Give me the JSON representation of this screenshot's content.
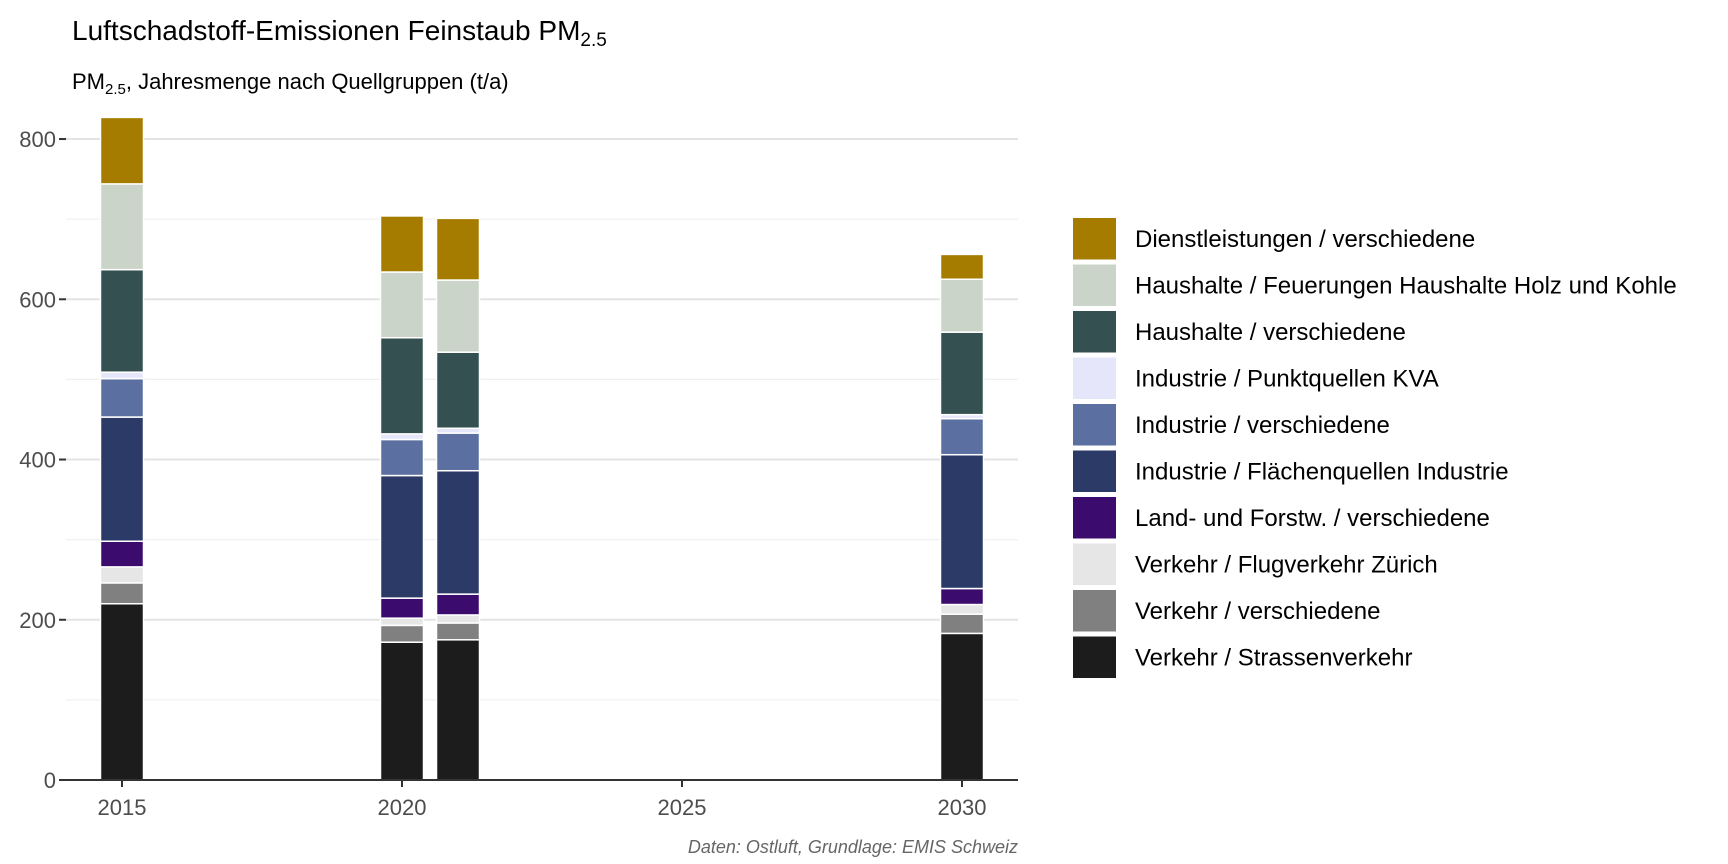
{
  "chart_data": {
    "type": "bar",
    "stacked": true,
    "title": "Luftschadstoff-Emissionen Feinstaub PM",
    "title_sub": "2.5",
    "subtitle_prefix": "PM",
    "subtitle_sub": "2.5",
    "subtitle_suffix": ", Jahresmenge nach Quellgruppen (t/a)",
    "caption": "Daten: Ostluft, Grundlage: EMIS Schweiz",
    "xlim": [
      2014,
      2031
    ],
    "ylim": [
      0,
      830
    ],
    "x_ticks": [
      2015,
      2020,
      2025,
      2030
    ],
    "y_ticks": [
      0,
      200,
      400,
      600,
      800
    ],
    "legend_position": "right",
    "grid": true,
    "x": [
      2015,
      2020,
      2021,
      2030
    ],
    "series": [
      {
        "name": "Verkehr / Strassenverkehr",
        "color": "#1c1c1c",
        "values": [
          220,
          172,
          175,
          183
        ]
      },
      {
        "name": "Verkehr / verschiedene",
        "color": "#808080",
        "values": [
          26,
          21,
          21,
          24
        ]
      },
      {
        "name": "Verkehr / Flugverkehr Zürich",
        "color": "#e6e6e6",
        "values": [
          20,
          9,
          10,
          12
        ]
      },
      {
        "name": "Land- und Forstw. / verschiedene",
        "color": "#3b0c6e",
        "values": [
          32,
          25,
          26,
          20
        ]
      },
      {
        "name": "Industrie / Flächenquellen Industrie",
        "color": "#2b3a66",
        "values": [
          155,
          153,
          154,
          167
        ]
      },
      {
        "name": "Industrie / verschiedene",
        "color": "#5b70a0",
        "values": [
          48,
          45,
          47,
          45
        ]
      },
      {
        "name": "Industrie / Punktquellen KVA",
        "color": "#e6e6fa",
        "values": [
          8,
          7,
          6,
          5
        ]
      },
      {
        "name": "Haushalte / verschiedene",
        "color": "#355050",
        "values": [
          128,
          120,
          95,
          103
        ]
      },
      {
        "name": "Haushalte / Feuerungen Haushalte Holz und Kohle",
        "color": "#cbd4c9",
        "values": [
          107,
          82,
          90,
          66
        ]
      },
      {
        "name": "Dienstleistungen / verschiedene",
        "color": "#a67c00",
        "values": [
          83,
          70,
          77,
          31
        ]
      }
    ]
  }
}
